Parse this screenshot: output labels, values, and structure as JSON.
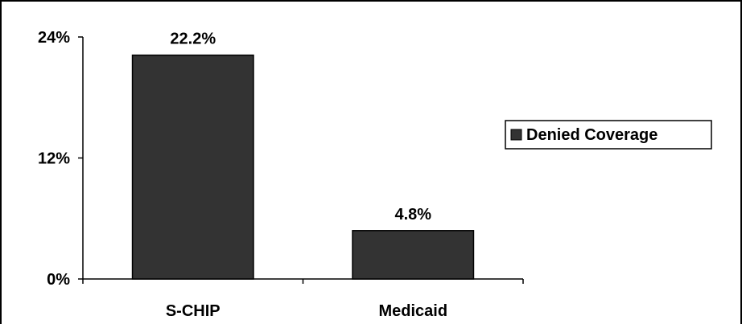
{
  "chart_data": {
    "type": "bar",
    "categories": [
      "S-CHIP",
      "Medicaid"
    ],
    "series": [
      {
        "name": "Denied Coverage",
        "values": [
          22.2,
          4.8
        ],
        "data_labels": [
          "22.2%",
          "4.8%"
        ],
        "color": "#333333"
      }
    ],
    "y_ticks": [
      {
        "value": 0,
        "label": "0%"
      },
      {
        "value": 12,
        "label": "12%"
      },
      {
        "value": 24,
        "label": "24%"
      }
    ],
    "ylim": [
      0,
      24
    ],
    "grid": false,
    "legend_position": "right",
    "title": "",
    "xlabel": "",
    "ylabel": ""
  }
}
